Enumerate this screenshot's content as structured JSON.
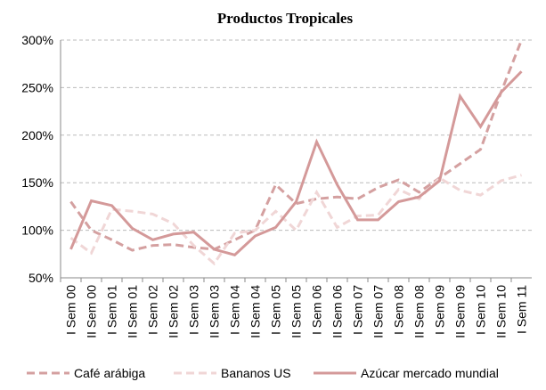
{
  "chart_data": {
    "type": "line",
    "title": "Productos Tropicales",
    "categories": [
      "I Sem 00",
      "II Sem 00",
      "I Sem 01",
      "II Sem 01",
      "I Sem 02",
      "II Sem 02",
      "I Sem 03",
      "II Sem 03",
      "I Sem 04",
      "II Sem 04",
      "I Sem 05",
      "II Sem 05",
      "I Sem 06",
      "II Sem 06",
      "I Sem 07",
      "II Sem 07",
      "I Sem 08",
      "II Sem 08",
      "I Sem 09",
      "II Sem 09",
      "I Sem 10",
      "II Sem 10",
      "I Sem 11"
    ],
    "series": [
      {
        "name": "Café arábiga",
        "color": "#d4a0a0",
        "dash": "dashed",
        "values": [
          130,
          100,
          90,
          79,
          84,
          85,
          82,
          80,
          90,
          100,
          148,
          128,
          133,
          135,
          133,
          145,
          153,
          140,
          155,
          170,
          185,
          245,
          300
        ]
      },
      {
        "name": "Bananos US",
        "color": "#f0d6d6",
        "dash": "dashed",
        "values": [
          92,
          76,
          122,
          120,
          117,
          107,
          84,
          65,
          97,
          100,
          120,
          100,
          140,
          103,
          115,
          116,
          143,
          133,
          155,
          142,
          137,
          152,
          158
        ]
      },
      {
        "name": "Azúcar mercado mundial",
        "color": "#d49999",
        "dash": "solid",
        "values": [
          80,
          131,
          126,
          102,
          90,
          96,
          98,
          80,
          74,
          94,
          103,
          130,
          193,
          148,
          111,
          111,
          130,
          135,
          152,
          241,
          209,
          245,
          267
        ]
      }
    ],
    "ylim": [
      50,
      300
    ],
    "yticks": [
      {
        "value": 50,
        "label": "50%"
      },
      {
        "value": 100,
        "label": "100%"
      },
      {
        "value": 150,
        "label": "150%"
      },
      {
        "value": 200,
        "label": "200%"
      },
      {
        "value": 250,
        "label": "250%"
      },
      {
        "value": 300,
        "label": "300%"
      }
    ],
    "grid": true,
    "legend": "bottom"
  }
}
